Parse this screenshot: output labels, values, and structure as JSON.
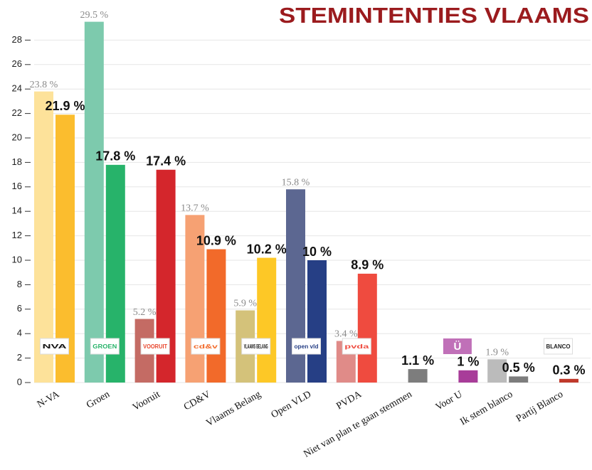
{
  "chart_data": {
    "type": "bar",
    "title": "STEMINTENTIES VLAAMS",
    "categories": [
      "N-VA",
      "Groen",
      "Vooruit",
      "CD&V",
      "Vlaams Belang",
      "Open VLD",
      "PVDA",
      "Niet van plan te gaan stemmen",
      "Voor U",
      "Ik stem blanco",
      "Partij Blanco"
    ],
    "series": [
      {
        "colors": [
          "#fde29a",
          "#7dcaad",
          "#c46b64",
          "#f6a173",
          "#d4c27a",
          "#5c6791",
          "#e08b88",
          null,
          null,
          "#bbbbbb",
          null
        ],
        "values": [
          23.8,
          29.5,
          5.2,
          13.7,
          5.9,
          15.8,
          3.4,
          null,
          null,
          1.9,
          null
        ],
        "value_labels": [
          "23.8 %",
          "29.5 %",
          "5.2 %",
          "13.7 %",
          "5.9 %",
          "15.8 %",
          "3.4 %",
          null,
          null,
          "1.9 %",
          null
        ]
      },
      {
        "colors": [
          "#fbbd2e",
          "#27b36a",
          "#d4262c",
          "#f26a2a",
          "#fdc826",
          "#263f85",
          "#ef4b3f",
          "#7d7d7d",
          "#a83c99",
          "#7d7d7d",
          "#c0392b"
        ],
        "values": [
          21.9,
          17.8,
          17.4,
          10.9,
          10.2,
          10,
          8.9,
          1.1,
          1,
          0.5,
          0.3
        ],
        "value_labels": [
          "21.9 %",
          "17.8 %",
          "17.4 %",
          "10.9 %",
          "10.2 %",
          "10 %",
          "8.9 %",
          "1.1 %",
          "1 %",
          "0.5 %",
          "0.3 %"
        ]
      }
    ],
    "logos": [
      "NVA",
      "GROEN",
      "VOORUIT",
      "cd&v",
      "VLAAMS BELANG",
      "open vld",
      "pvda",
      null,
      "Ü",
      null,
      "BLANCO"
    ],
    "logo_colors": [
      "#111111",
      "#27b36a",
      "#e8452c",
      "#f26a2a",
      "#111111",
      "#263f85",
      "#ef4b3f",
      null,
      "#c070b8",
      null,
      "#ffffff"
    ],
    "ylim": [
      0,
      30
    ],
    "yticks": [
      0,
      2,
      4,
      6,
      8,
      10,
      12,
      14,
      16,
      18,
      20,
      22,
      24,
      26,
      28
    ],
    "grid": true
  }
}
